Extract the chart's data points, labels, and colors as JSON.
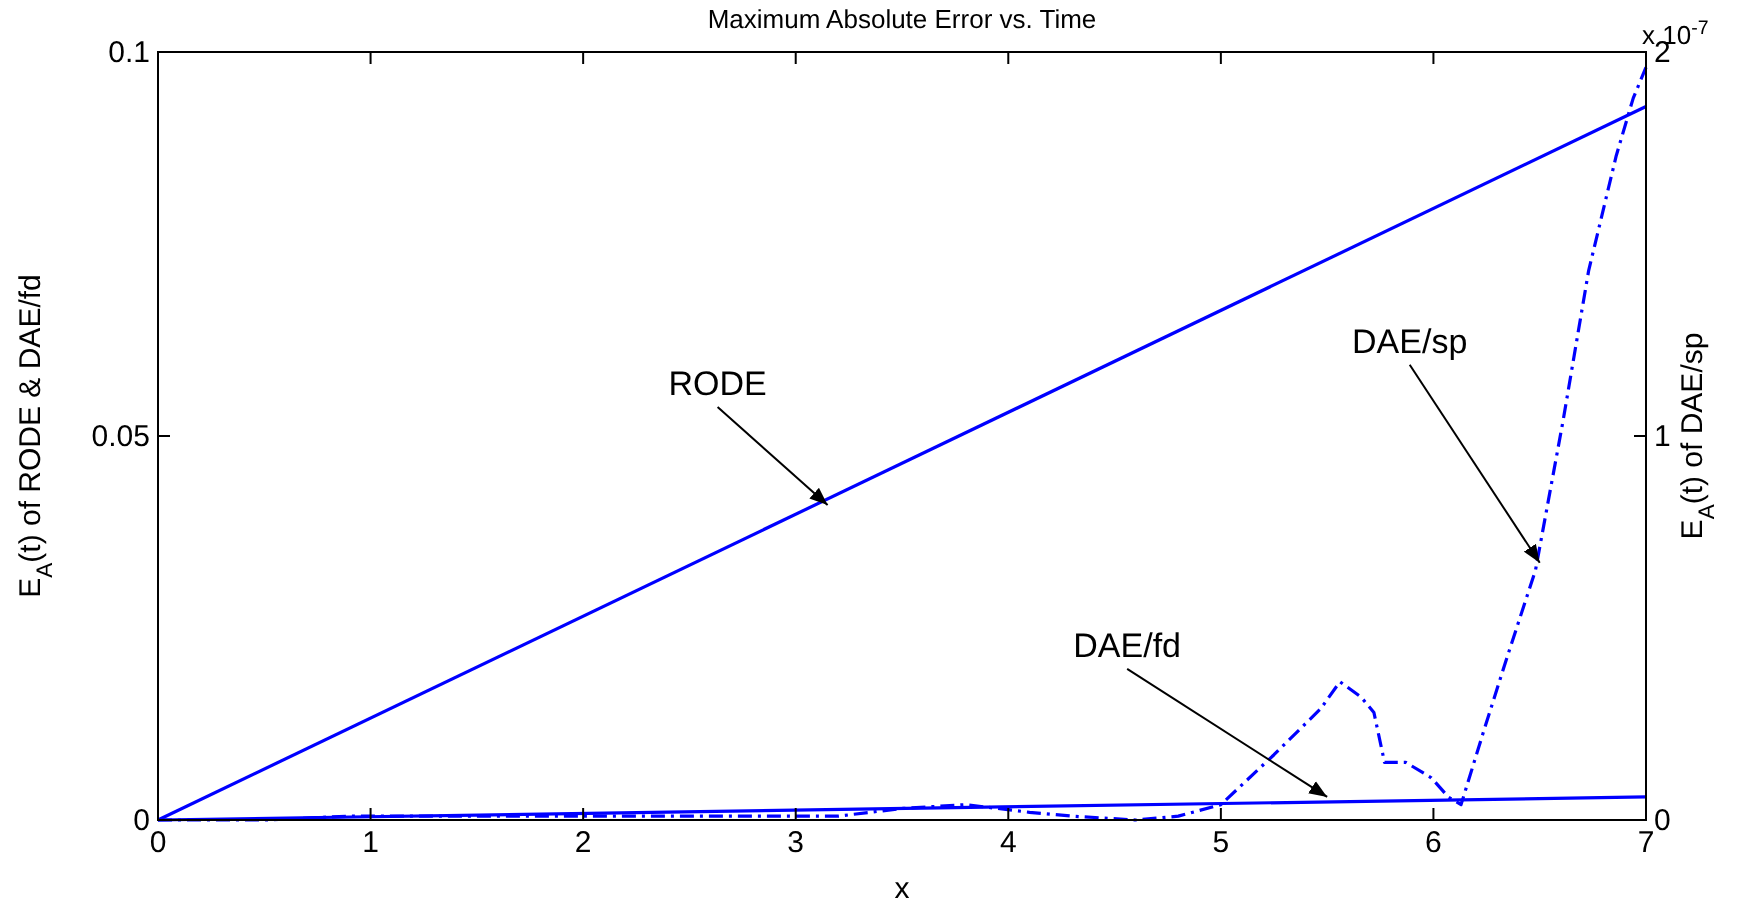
{
  "chart_data": {
    "type": "line",
    "title": "Maximum Absolute Error vs. Time",
    "xlabel": "x",
    "ylabel": "E$_{A}$(t) of RODE & DAE/fd",
    "y2label": "E$_{A}$(t) of DAE/sp",
    "xlim": [
      0,
      7
    ],
    "xticks": [
      0,
      1,
      2,
      3,
      4,
      5,
      6,
      7
    ],
    "ylim": [
      0,
      0.1
    ],
    "yticks": [
      0,
      0.05,
      0.1
    ],
    "y2lim": [
      0,
      2
    ],
    "y2ticks": [
      0,
      1,
      2
    ],
    "grid": false,
    "series": [
      {
        "color": "#0000ff",
        "line_style": "solid",
        "x": [
          0,
          7
        ],
        "values": [
          0,
          0.0929
        ]
      },
      {
        "color": "#0000ff",
        "line_style": "solid",
        "x": [
          0,
          7
        ],
        "values": [
          0,
          0.003
        ]
      },
      {
        "color": "#0000ff",
        "line_style": "dashed",
        "axis": "y2",
        "x": [
          0,
          0.5,
          0.9,
          1.2,
          1.6,
          2.0,
          2.4,
          2.8,
          3.2,
          3.5,
          3.8,
          4.1,
          4.3,
          4.6,
          4.8,
          5.0,
          5.25,
          5.47,
          5.56,
          5.66,
          5.72,
          5.77,
          5.87,
          5.99,
          6.07,
          6.13,
          6.23,
          6.35,
          6.48,
          6.61,
          6.73,
          6.86,
          6.94,
          7.0
        ],
        "values": [
          0,
          0,
          0.01,
          0.01,
          0.01,
          0.01,
          0.01,
          0.01,
          0.01,
          0.03,
          0.04,
          0.02,
          0.01,
          0,
          0.01,
          0.04,
          0.17,
          0.29,
          0.36,
          0.32,
          0.28,
          0.15,
          0.15,
          0.11,
          0.06,
          0.04,
          0.22,
          0.43,
          0.65,
          1.04,
          1.43,
          1.73,
          1.88,
          1.96
        ]
      }
    ],
    "annotations": [
      {
        "text": "RODE",
        "x": 3.15,
        "y": 0.041
      },
      {
        "text": "DAE/fd",
        "x": 5.5,
        "y": 0.003
      },
      {
        "text": "DAE/sp",
        "x": 6.5,
        "y": 0.0335
      },
      "x 10$^{-7}$"
    ]
  }
}
